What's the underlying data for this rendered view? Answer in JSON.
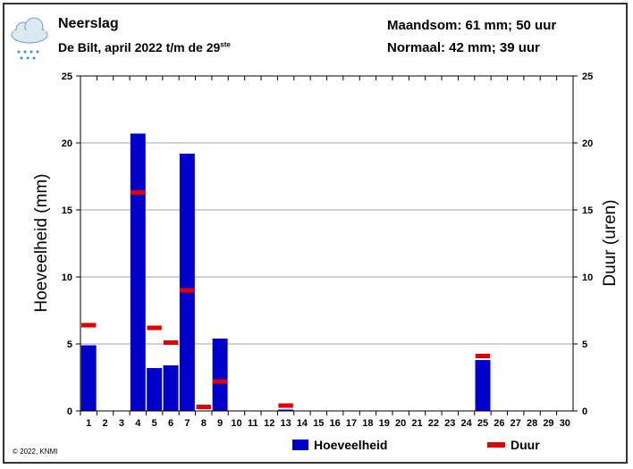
{
  "header": {
    "title": "Neerslag",
    "subtitle": "De Bilt, april 2022 t/m de 29",
    "subtitle_sup": "ste",
    "maandsom": "Maandsom: 61 mm; 50 uur",
    "normaal": "Normaal: 42 mm; 39 uur",
    "icon": "rain-cloud-icon"
  },
  "footer": {
    "copyright": "© 2022, KNMI"
  },
  "colors": {
    "bar": "#0000c8",
    "duur": "#e00000",
    "grid": "#888888"
  },
  "chart_data": {
    "type": "bar",
    "title": "Neerslag",
    "ylabel": "Hoeveelheid (mm)",
    "y2label": "Duur (uren)",
    "ylim": [
      0,
      25
    ],
    "y2lim": [
      0,
      25
    ],
    "yticks": [
      "0",
      "5",
      "10",
      "15",
      "20",
      "25"
    ],
    "categories": [
      "1",
      "2",
      "3",
      "4",
      "5",
      "6",
      "7",
      "8",
      "9",
      "10",
      "11",
      "12",
      "13",
      "14",
      "15",
      "16",
      "17",
      "18",
      "19",
      "20",
      "21",
      "22",
      "23",
      "24",
      "25",
      "26",
      "27",
      "28",
      "29",
      "30"
    ],
    "series": [
      {
        "name": "Hoeveelheid",
        "type": "bar",
        "values": [
          4.9,
          0,
          0,
          20.7,
          3.2,
          3.4,
          19.2,
          0,
          5.4,
          0,
          0,
          0,
          0.1,
          0,
          0,
          0,
          0,
          0,
          0,
          0,
          0,
          0,
          0,
          0,
          3.8,
          0,
          0,
          0,
          0,
          0
        ]
      },
      {
        "name": "Duur",
        "type": "marker",
        "values": [
          6.4,
          null,
          null,
          16.3,
          6.2,
          5.1,
          9.0,
          0.3,
          2.2,
          null,
          null,
          null,
          0.4,
          null,
          null,
          null,
          null,
          null,
          null,
          null,
          null,
          null,
          null,
          null,
          4.1,
          null,
          null,
          null,
          null,
          null
        ]
      }
    ],
    "legend": [
      "Hoeveelheid",
      "Duur"
    ],
    "legend_position": "bottom-right",
    "grid": true
  }
}
